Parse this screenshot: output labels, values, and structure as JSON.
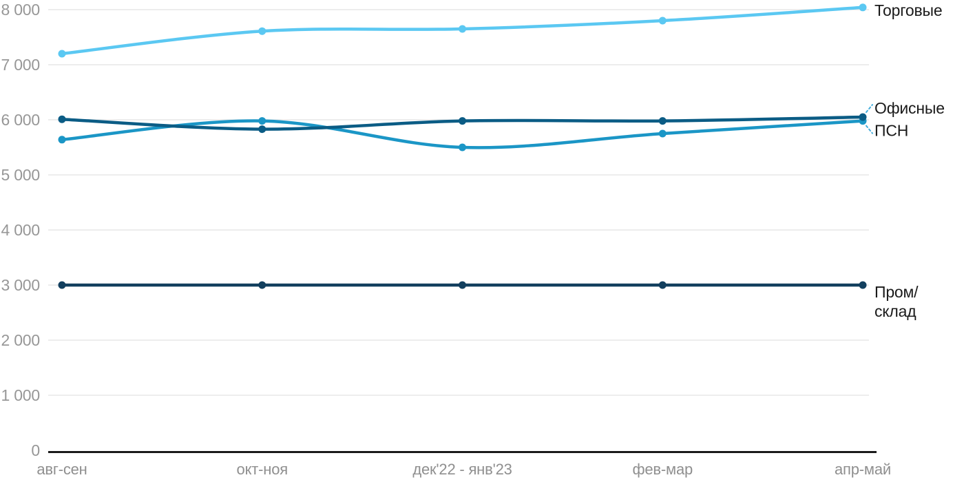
{
  "page": {
    "background_color": "#ffffff"
  },
  "chart_data": {
    "type": "line",
    "title": "",
    "categories": [
      "авг-сен",
      "окт-ноя",
      "дек'22 - янв'23",
      "фев-мар",
      "апр-май"
    ],
    "y_axis": {
      "min": 0,
      "max": 8000,
      "tick_step": 1000,
      "tick_labels": [
        "0",
        "1 000",
        "2 000",
        "3 000",
        "4 000",
        "5 000",
        "6 000",
        "7 000",
        "8 000"
      ]
    },
    "grid": "horizontal",
    "legend_position": "right-end-labels",
    "series": [
      {
        "name": "Торговые",
        "color": "#5BC8F2",
        "values": [
          7200,
          7610,
          7650,
          7800,
          8040
        ],
        "end_label_lines": [
          "Торговые"
        ],
        "leader_line": false
      },
      {
        "name": "Офисные",
        "color": "#0B5C85",
        "values": [
          6010,
          5830,
          5980,
          5980,
          6050
        ],
        "end_label_lines": [
          "Офисные"
        ],
        "leader_line": true
      },
      {
        "name": "ПСН",
        "color": "#1B96C6",
        "values": [
          5640,
          5980,
          5500,
          5750,
          5980
        ],
        "end_label_lines": [
          "ПСН"
        ],
        "leader_line": true
      },
      {
        "name": "Пром/склад",
        "color": "#123F5E",
        "values": [
          3000,
          3000,
          3000,
          3000,
          3000
        ],
        "end_label_lines": [
          "Пром/",
          "склад"
        ],
        "leader_line": false
      }
    ],
    "style_colors": {
      "grid_color": "#E7E7E7",
      "axis_color": "#1A1A1A",
      "tick_text_color": "#979797",
      "series_label_color": "#1A1A1A",
      "leader_line_color": "#45AEDC"
    }
  }
}
